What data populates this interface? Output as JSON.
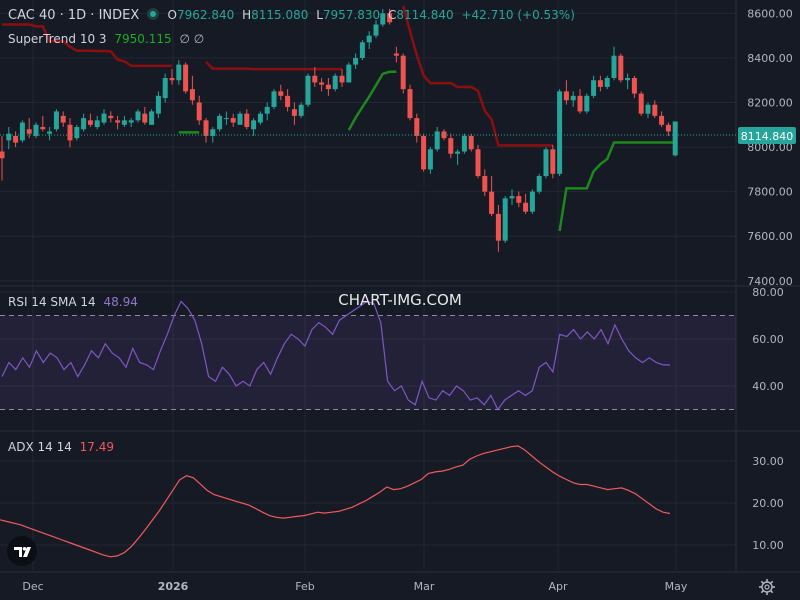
{
  "header": {
    "symbol": "CAC 40 · 1D · INDEX",
    "open_label": "O",
    "open": "7962.840",
    "high_label": "H",
    "high": "8115.080",
    "low_label": "L",
    "low": "7957.830",
    "close_label": "C",
    "close": "8114.840",
    "change": "+42.710 (+0.53%)",
    "supertrend_label": "SuperTrend 10 3",
    "supertrend_value": "7950.115",
    "eye_glyph": "∅ ∅"
  },
  "watermark": "CHART-IMG.COM",
  "price_axis": {
    "ticks": [
      "8600.00",
      "8400.00",
      "8200.00",
      "8000.00",
      "7800.00",
      "7600.00",
      "7400.00"
    ],
    "last_price": "8114.840"
  },
  "rsi_panel": {
    "label": "RSI 14 SMA 14",
    "value": "48.94",
    "ticks": [
      "80.00",
      "60.00",
      "40.00"
    ]
  },
  "adx_panel": {
    "label": "ADX 14 14",
    "value": "17.49",
    "ticks": [
      "30.00",
      "20.00",
      "10.00"
    ]
  },
  "time_axis": {
    "labels": [
      "Dec",
      "2026",
      "Feb",
      "Mar",
      "Apr",
      "May"
    ]
  },
  "icons": {
    "logo": "tradingview-logo-icon",
    "settings": "gear-icon",
    "eye": "eye-icon"
  },
  "colors": {
    "bg": "#161a25",
    "up": "#26a69a",
    "down": "#ef5350",
    "st_up": "#1b8a1b",
    "st_down": "#8b0f0f",
    "rsi": "#7e57c2",
    "adx": "#f05a5a"
  },
  "chart_data": [
    {
      "type": "candlestick",
      "title": "CAC 40 · 1D · INDEX",
      "ylim": [
        7400,
        8650
      ],
      "price_scale": "8114.840",
      "series": [
        {
          "name": "CAC 40",
          "candles": [
            [
              7980,
              8050,
              7850,
              7950
            ],
            [
              8030,
              8090,
              7990,
              8060
            ],
            [
              8050,
              8070,
              8000,
              8020
            ],
            [
              8030,
              8120,
              8020,
              8110
            ],
            [
              8080,
              8130,
              8040,
              8060
            ],
            [
              8050,
              8110,
              8040,
              8100
            ],
            [
              8090,
              8140,
              8070,
              8080
            ],
            [
              8060,
              8090,
              8030,
              8070
            ],
            [
              8080,
              8170,
              8070,
              8160
            ],
            [
              8140,
              8160,
              8090,
              8110
            ],
            [
              8100,
              8130,
              8000,
              8030
            ],
            [
              8040,
              8100,
              8030,
              8090
            ],
            [
              8080,
              8150,
              8070,
              8130
            ],
            [
              8120,
              8150,
              8090,
              8100
            ],
            [
              8090,
              8140,
              8080,
              8120
            ],
            [
              8110,
              8170,
              8100,
              8150
            ],
            [
              8140,
              8160,
              8110,
              8130
            ],
            [
              8120,
              8140,
              8080,
              8110
            ],
            [
              8100,
              8140,
              8090,
              8120
            ],
            [
              8110,
              8130,
              8090,
              8120
            ],
            [
              8120,
              8170,
              8110,
              8160
            ],
            [
              8150,
              8180,
              8100,
              8110
            ],
            [
              8100,
              8170,
              8100,
              8160
            ],
            [
              8150,
              8250,
              8130,
              8230
            ],
            [
              8220,
              8330,
              8200,
              8310
            ],
            [
              8310,
              8350,
              8280,
              8300
            ],
            [
              8300,
              8390,
              8280,
              8370
            ],
            [
              8370,
              8380,
              8240,
              8250
            ],
            [
              8260,
              8320,
              8190,
              8210
            ],
            [
              8200,
              8230,
              8100,
              8120
            ],
            [
              8120,
              8130,
              8020,
              8050
            ],
            [
              8050,
              8090,
              8020,
              8080
            ],
            [
              8080,
              8150,
              8070,
              8140
            ],
            [
              8130,
              8160,
              8100,
              8130
            ],
            [
              8130,
              8150,
              8090,
              8110
            ],
            [
              8100,
              8160,
              8100,
              8150
            ],
            [
              8150,
              8170,
              8080,
              8090
            ],
            [
              8080,
              8130,
              8050,
              8120
            ],
            [
              8110,
              8160,
              8100,
              8150
            ],
            [
              8150,
              8200,
              8120,
              8180
            ],
            [
              8180,
              8260,
              8170,
              8250
            ],
            [
              8250,
              8280,
              8210,
              8230
            ],
            [
              8230,
              8260,
              8160,
              8180
            ],
            [
              8170,
              8200,
              8100,
              8140
            ],
            [
              8140,
              8200,
              8130,
              8190
            ],
            [
              8190,
              8330,
              8180,
              8320
            ],
            [
              8320,
              8360,
              8270,
              8290
            ],
            [
              8290,
              8310,
              8250,
              8280
            ],
            [
              8280,
              8310,
              8230,
              8260
            ],
            [
              8260,
              8330,
              8250,
              8320
            ],
            [
              8320,
              8350,
              8270,
              8290
            ],
            [
              8290,
              8380,
              8290,
              8370
            ],
            [
              8370,
              8420,
              8350,
              8400
            ],
            [
              8400,
              8480,
              8390,
              8470
            ],
            [
              8470,
              8520,
              8440,
              8500
            ],
            [
              8500,
              8570,
              8490,
              8550
            ],
            [
              8550,
              8620,
              8540,
              8600
            ],
            [
              8600,
              8620,
              8550,
              8560
            ],
            [
              8420,
              8450,
              8380,
              8410
            ],
            [
              8410,
              8420,
              8240,
              8260
            ],
            [
              8260,
              8280,
              8120,
              8130
            ],
            [
              8130,
              8150,
              8020,
              8050
            ],
            [
              8050,
              8060,
              7890,
              7900
            ],
            [
              7900,
              8000,
              7880,
              7990
            ],
            [
              7990,
              8090,
              7980,
              8070
            ],
            [
              8070,
              8080,
              8030,
              8040
            ],
            [
              8040,
              8060,
              7950,
              7970
            ],
            [
              7970,
              7990,
              7920,
              7980
            ],
            [
              7980,
              8060,
              7970,
              8050
            ],
            [
              8050,
              8060,
              7980,
              7990
            ],
            [
              7990,
              8010,
              7860,
              7870
            ],
            [
              7870,
              7900,
              7780,
              7800
            ],
            [
              7800,
              7870,
              7690,
              7700
            ],
            [
              7700,
              7740,
              7530,
              7580
            ],
            [
              7580,
              7780,
              7570,
              7770
            ],
            [
              7770,
              7810,
              7740,
              7780
            ],
            [
              7780,
              7800,
              7730,
              7750
            ],
            [
              7750,
              7790,
              7700,
              7710
            ],
            [
              7710,
              7810,
              7700,
              7800
            ],
            [
              7800,
              7880,
              7790,
              7870
            ],
            [
              7870,
              8000,
              7860,
              7990
            ],
            [
              7990,
              8010,
              7860,
              7880
            ],
            [
              7880,
              8260,
              7870,
              8250
            ],
            [
              8250,
              8300,
              8190,
              8210
            ],
            [
              8210,
              8250,
              8180,
              8230
            ],
            [
              8230,
              8260,
              8150,
              8160
            ],
            [
              8160,
              8240,
              8150,
              8230
            ],
            [
              8230,
              8320,
              8220,
              8300
            ],
            [
              8300,
              8320,
              8250,
              8270
            ],
            [
              8270,
              8320,
              8260,
              8310
            ],
            [
              8310,
              8450,
              8300,
              8410
            ],
            [
              8410,
              8420,
              8290,
              8300
            ],
            [
              8300,
              8330,
              8260,
              8310
            ],
            [
              8310,
              8320,
              8220,
              8240
            ],
            [
              8240,
              8250,
              8140,
              8150
            ],
            [
              8150,
              8200,
              8130,
              8190
            ],
            [
              8190,
              8210,
              8130,
              8140
            ],
            [
              8140,
              8160,
              8090,
              8100
            ],
            [
              8100,
              8110,
              8050,
              8070
            ],
            [
              7962.84,
              8115.08,
              7957.83,
              8114.84
            ]
          ]
        },
        {
          "name": "SuperTrend 10 3",
          "last": 7950.115
        }
      ]
    },
    {
      "type": "line",
      "title": "RSI 14 SMA 14",
      "ylim": [
        25,
        80
      ],
      "bands": [
        70,
        30
      ],
      "last": 48.94,
      "series": [
        {
          "name": "RSI 14",
          "values": [
            44,
            50,
            47,
            52,
            48,
            55,
            50,
            54,
            52,
            47,
            50,
            44,
            49,
            55,
            52,
            58,
            54,
            52,
            48,
            56,
            50,
            49,
            47,
            55,
            62,
            70,
            76,
            73,
            68,
            58,
            44,
            42,
            48,
            45,
            40,
            42,
            40,
            47,
            50,
            45,
            52,
            58,
            62,
            60,
            57,
            64,
            67,
            65,
            62,
            68,
            70,
            72,
            74,
            76,
            75,
            67,
            42,
            38,
            40,
            34,
            32,
            42,
            35,
            34,
            38,
            36,
            40,
            38,
            34,
            35,
            32,
            36,
            30,
            34,
            36,
            38,
            36,
            38,
            48,
            50,
            46,
            62,
            61,
            64,
            60,
            63,
            60,
            64,
            58,
            66,
            60,
            55,
            52,
            50,
            52,
            50,
            49,
            48.94
          ]
        }
      ]
    },
    {
      "type": "line",
      "title": "ADX 14 14",
      "ylim": [
        4,
        36
      ],
      "last": 17.49,
      "series": [
        {
          "name": "ADX 14",
          "values": [
            16,
            15.6,
            15.2,
            14.8,
            14.2,
            13.6,
            13,
            12.4,
            11.8,
            11.2,
            10.6,
            10,
            9.4,
            8.8,
            8.2,
            7.6,
            7.2,
            7.4,
            8.2,
            9.6,
            11.5,
            13.6,
            15.8,
            18,
            20.5,
            23,
            25.5,
            26.5,
            26,
            24.5,
            23,
            22,
            21.5,
            21,
            20.5,
            20,
            19.5,
            18.7,
            17.8,
            17,
            16.6,
            16.4,
            16.6,
            16.8,
            17,
            17.4,
            17.8,
            17.6,
            17.8,
            18,
            18.5,
            19,
            19.8,
            20.6,
            21.6,
            22.6,
            23.8,
            23.2,
            23.4,
            24,
            24.8,
            25.6,
            27,
            27.4,
            27.6,
            28,
            28.6,
            29,
            30.4,
            31.2,
            31.8,
            32.2,
            32.6,
            33,
            33.4,
            33.6,
            32.6,
            31.2,
            29.8,
            28.6,
            27.4,
            26.4,
            25.6,
            24.8,
            24.4,
            24.4,
            24,
            23.6,
            23.2,
            23.4,
            23.6,
            23,
            22.2,
            21,
            19.8,
            18.6,
            17.8,
            17.49
          ]
        }
      ]
    }
  ]
}
